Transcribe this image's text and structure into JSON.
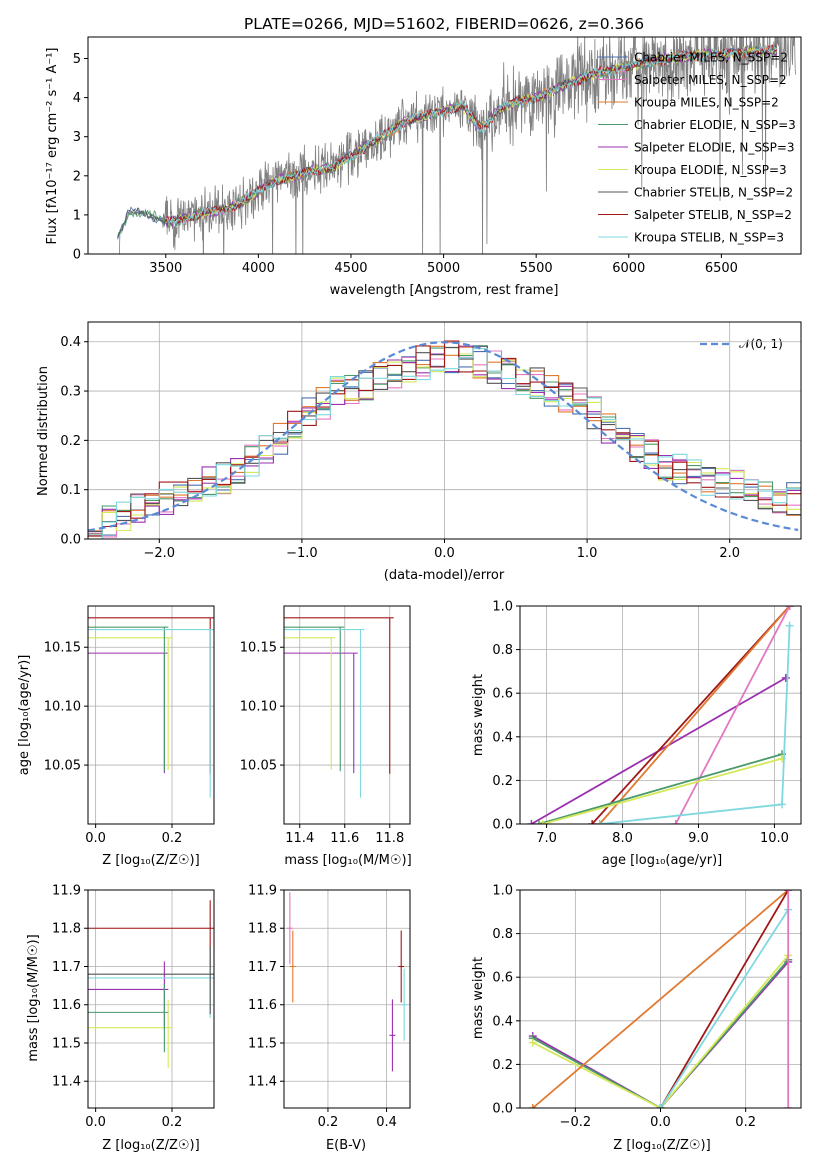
{
  "chart_data": [
    {
      "id": "spectrum",
      "type": "line",
      "title": "PLATE=0266, MJD=51602, FIBERID=0626, z=0.366",
      "xlabel": "wavelength [Angstrom, rest frame]",
      "ylabel": "Flux [fλ10⁻¹⁷ erg cm⁻² s⁻¹ A⁻¹]",
      "xlim": [
        3080,
        6930
      ],
      "ylim": [
        0,
        5.55
      ],
      "xticks": [
        3500,
        4000,
        4500,
        5000,
        5500,
        6000,
        6500
      ],
      "yticks": [
        0,
        1,
        2,
        3,
        4,
        5
      ],
      "grid": false,
      "legend_position": "top-right",
      "data_trend": {
        "x": [
          3200,
          3300,
          3400,
          3500,
          3600,
          3700,
          3800,
          3900,
          4000,
          4100,
          4200,
          4300,
          4400,
          4500,
          4600,
          4700,
          4800,
          4900,
          5000,
          5100,
          5200,
          5300,
          5400,
          5500,
          5600,
          5700,
          5800,
          5900,
          6000,
          6100,
          6200,
          6300,
          6400,
          6500,
          6600,
          6700,
          6800
        ],
        "y": [
          0.0,
          1.05,
          1.05,
          0.8,
          0.9,
          1.05,
          1.1,
          1.3,
          1.6,
          1.9,
          2.0,
          2.15,
          2.2,
          2.5,
          2.8,
          3.1,
          3.4,
          3.55,
          3.65,
          3.8,
          3.2,
          3.7,
          3.9,
          4.0,
          4.2,
          4.4,
          4.6,
          4.7,
          4.8,
          4.9,
          5.0,
          5.05,
          5.1,
          5.1,
          5.15,
          5.2,
          5.2
        ]
      },
      "legend": [
        {
          "name": "Chabrier MILES, N_SSP=2",
          "color": "#4c72b0"
        },
        {
          "name": "Salpeter MILES, N_SSP=2",
          "color": "#e377c2"
        },
        {
          "name": "Kroupa MILES, N_SSP=2",
          "color": "#e07a30"
        },
        {
          "name": "Chabrier ELODIE, N_SSP=3",
          "color": "#4a9a6a"
        },
        {
          "name": "Salpeter ELODIE, N_SSP=3",
          "color": "#9b30b0"
        },
        {
          "name": "Kroupa ELODIE, N_SSP=3",
          "color": "#d4e85a"
        },
        {
          "name": "Chabrier STELIB, N_SSP=2",
          "color": "#555555"
        },
        {
          "name": "Salpeter STELIB, N_SSP=2",
          "color": "#a01818"
        },
        {
          "name": "Kroupa STELIB, N_SSP=3",
          "color": "#7fd8e0"
        }
      ]
    },
    {
      "id": "residuals",
      "type": "line",
      "xlabel": "(data-model)/error",
      "ylabel": "Normed distribution",
      "xlim": [
        -2.5,
        2.5
      ],
      "ylim": [
        0,
        0.44
      ],
      "xticks": [
        -2,
        -1,
        0,
        1,
        2
      ],
      "yticks": [
        0.0,
        0.1,
        0.2,
        0.3,
        0.4
      ],
      "grid": true,
      "legend_position": "top-right",
      "legend_label": "𝒩(0, 1)",
      "histogram_envelope": {
        "x": [
          -2.5,
          -2.25,
          -2.0,
          -1.75,
          -1.5,
          -1.25,
          -1.0,
          -0.75,
          -0.5,
          -0.25,
          0.0,
          0.25,
          0.5,
          0.75,
          1.0,
          1.25,
          1.5,
          1.75,
          2.0,
          2.25,
          2.5
        ],
        "y": [
          0.02,
          0.05,
          0.08,
          0.1,
          0.13,
          0.18,
          0.24,
          0.3,
          0.32,
          0.35,
          0.37,
          0.36,
          0.33,
          0.3,
          0.27,
          0.2,
          0.16,
          0.13,
          0.11,
          0.09,
          0.08
        ]
      }
    },
    {
      "id": "age-vs-Z",
      "type": "scatter",
      "xlabel": "Z [log₁₀(Z/Z☉)]",
      "ylabel": "age  [log₁₀(age/yr)]",
      "xlim": [
        -0.02,
        0.31
      ],
      "ylim": [
        10.0,
        10.185
      ],
      "xticks": [
        0.0,
        0.2
      ],
      "yticks": [
        10.05,
        10.1,
        10.15
      ],
      "grid": true,
      "points": [
        {
          "x": 0.18,
          "y": 10.145,
          "color": "#9b30b0"
        },
        {
          "x": 0.19,
          "y": 10.158,
          "color": "#d4e85a"
        },
        {
          "x": 0.18,
          "y": 10.167,
          "color": "#4a9a6a"
        },
        {
          "x": 0.3,
          "y": 10.175,
          "color": "#a01818"
        },
        {
          "x": 0.3,
          "y": 10.165,
          "color": "#7fd8e0"
        }
      ]
    },
    {
      "id": "age-vs-mass",
      "type": "scatter",
      "xlabel": "mass [log₁₀(M/M☉)]",
      "ylabel": "",
      "xlim": [
        11.33,
        11.89
      ],
      "ylim": [
        10.0,
        10.185
      ],
      "xticks": [
        11.4,
        11.6,
        11.8
      ],
      "yticks": [
        10.05,
        10.1,
        10.15
      ],
      "grid": true,
      "points": [
        {
          "x": 11.64,
          "y": 10.145,
          "color": "#9b30b0"
        },
        {
          "x": 11.54,
          "y": 10.158,
          "color": "#d4e85a"
        },
        {
          "x": 11.58,
          "y": 10.167,
          "color": "#4a9a6a"
        },
        {
          "x": 11.8,
          "y": 10.175,
          "color": "#a01818"
        },
        {
          "x": 11.67,
          "y": 10.165,
          "color": "#7fd8e0"
        }
      ]
    },
    {
      "id": "mass-weight-vs-age",
      "type": "line",
      "xlabel": "age  [log₁₀(age/yr)]",
      "ylabel": "mass weight",
      "xlim": [
        6.65,
        10.35
      ],
      "ylim": [
        0,
        1.0
      ],
      "xticks": [
        7,
        8,
        9,
        10
      ],
      "yticks": [
        0.0,
        0.2,
        0.4,
        0.6,
        0.8,
        1.0
      ],
      "grid": true,
      "series": [
        {
          "color": "#9b30b0",
          "x": [
            6.8,
            10.15
          ],
          "y": [
            0.0,
            0.67
          ]
        },
        {
          "color": "#a01818",
          "x": [
            7.6,
            10.2
          ],
          "y": [
            0.0,
            1.0
          ]
        },
        {
          "color": "#e07a30",
          "x": [
            7.7,
            10.2
          ],
          "y": [
            0.0,
            1.0
          ]
        },
        {
          "color": "#e377c2",
          "x": [
            8.7,
            10.2
          ],
          "y": [
            0.0,
            1.0
          ]
        },
        {
          "color": "#4a9a6a",
          "x": [
            6.9,
            10.1
          ],
          "y": [
            0.0,
            0.32
          ]
        },
        {
          "color": "#d4e85a",
          "x": [
            6.95,
            10.1
          ],
          "y": [
            0.0,
            0.3
          ]
        },
        {
          "color": "#7fd8e0",
          "x": [
            7.7,
            10.1,
            10.2
          ],
          "y": [
            0.0,
            0.09,
            0.91
          ]
        }
      ]
    },
    {
      "id": "mass-vs-Z",
      "type": "scatter",
      "xlabel": "Z [log₁₀(Z/Z☉)]",
      "ylabel": "mass [log₁₀(M/M☉)]",
      "xlim": [
        -0.02,
        0.31
      ],
      "ylim": [
        11.33,
        11.9
      ],
      "xticks": [
        0.0,
        0.2
      ],
      "yticks": [
        11.4,
        11.5,
        11.6,
        11.7,
        11.8,
        11.9
      ],
      "grid": true,
      "points": [
        {
          "x": 0.18,
          "y": 11.64,
          "color": "#9b30b0"
        },
        {
          "x": 0.19,
          "y": 11.54,
          "color": "#d4e85a"
        },
        {
          "x": 0.18,
          "y": 11.58,
          "color": "#4a9a6a"
        },
        {
          "x": 0.3,
          "y": 11.8,
          "color": "#a01818"
        },
        {
          "x": 0.3,
          "y": 11.67,
          "color": "#7fd8e0"
        },
        {
          "x": 0.3,
          "y": 11.68,
          "color": "#555555"
        }
      ]
    },
    {
      "id": "mass-vs-EBV",
      "type": "scatter",
      "xlabel": "E(B-V)",
      "ylabel": "",
      "xlim": [
        0.05,
        0.48
      ],
      "ylim": [
        11.33,
        11.9
      ],
      "xticks": [
        0.2,
        0.4
      ],
      "yticks": [
        11.4,
        11.5,
        11.6,
        11.7,
        11.8,
        11.9
      ],
      "grid": true,
      "points": [
        {
          "x": 0.07,
          "y": 11.8,
          "color": "#e377c2"
        },
        {
          "x": 0.08,
          "y": 11.7,
          "color": "#e07a30"
        },
        {
          "x": 0.42,
          "y": 11.52,
          "color": "#9b30b0"
        },
        {
          "x": 0.45,
          "y": 11.7,
          "color": "#a01818"
        },
        {
          "x": 0.46,
          "y": 11.6,
          "color": "#7fd8e0"
        }
      ]
    },
    {
      "id": "mass-weight-vs-Z",
      "type": "line",
      "xlabel": "Z [log₁₀(Z/Z☉)]",
      "ylabel": "mass weight",
      "xlim": [
        -0.33,
        0.33
      ],
      "ylim": [
        0,
        1.0
      ],
      "xticks": [
        -0.2,
        0.0,
        0.2
      ],
      "yticks": [
        0.0,
        0.2,
        0.4,
        0.6,
        0.8,
        1.0
      ],
      "grid": true,
      "series": [
        {
          "color": "#9b30b0",
          "x": [
            -0.3,
            0.0,
            0.3
          ],
          "y": [
            0.33,
            0.0,
            0.67
          ]
        },
        {
          "color": "#4a9a6a",
          "x": [
            -0.3,
            0.0,
            0.3
          ],
          "y": [
            0.32,
            0.0,
            0.68
          ]
        },
        {
          "color": "#d4e85a",
          "x": [
            -0.3,
            0.0,
            0.3
          ],
          "y": [
            0.3,
            0.0,
            0.7
          ]
        },
        {
          "color": "#e07a30",
          "x": [
            -0.3,
            0.3
          ],
          "y": [
            0.0,
            1.0
          ]
        },
        {
          "color": "#a01818",
          "x": [
            0.0,
            0.3
          ],
          "y": [
            0.0,
            1.0
          ]
        },
        {
          "color": "#7fd8e0",
          "x": [
            0.0,
            0.3
          ],
          "y": [
            0.0,
            0.91
          ]
        },
        {
          "color": "#e377c2",
          "x": [
            0.3,
            0.3
          ],
          "y": [
            0.0,
            1.0
          ]
        }
      ]
    }
  ]
}
